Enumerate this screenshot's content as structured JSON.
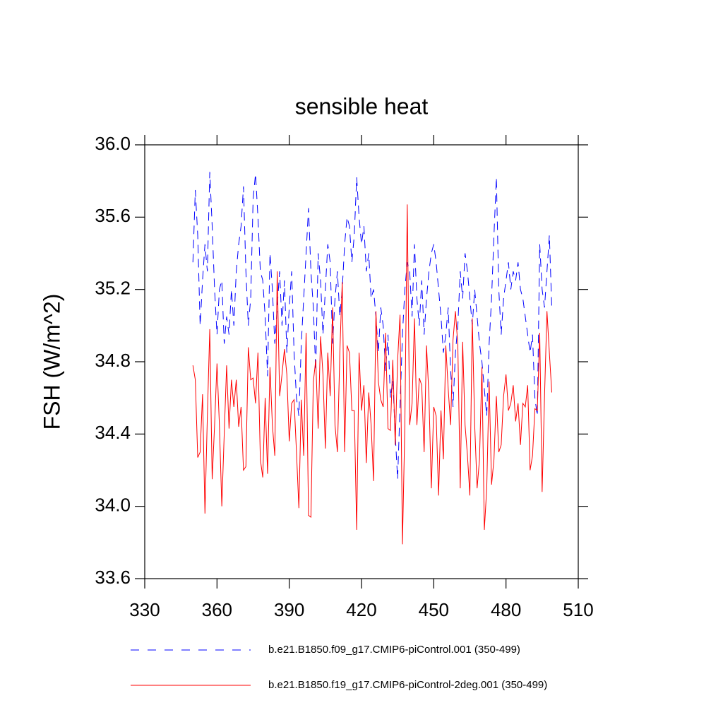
{
  "chart_data": {
    "type": "line",
    "title": "sensible heat",
    "y_label": "FSH  (W/m^2)",
    "x": [
      350,
      351,
      352,
      353,
      354,
      355,
      356,
      357,
      358,
      359,
      360,
      361,
      362,
      363,
      364,
      365,
      366,
      367,
      368,
      369,
      370,
      371,
      372,
      373,
      374,
      375,
      376,
      377,
      378,
      379,
      380,
      381,
      382,
      383,
      384,
      385,
      386,
      387,
      388,
      389,
      390,
      391,
      392,
      393,
      394,
      395,
      396,
      397,
      398,
      399,
      400,
      401,
      402,
      403,
      404,
      405,
      406,
      407,
      408,
      409,
      410,
      411,
      412,
      413,
      414,
      415,
      416,
      417,
      418,
      419,
      420,
      421,
      422,
      423,
      424,
      425,
      426,
      427,
      428,
      429,
      430,
      431,
      432,
      433,
      434,
      435,
      436,
      437,
      438,
      439,
      440,
      441,
      442,
      443,
      444,
      445,
      446,
      447,
      448,
      449,
      450,
      451,
      452,
      453,
      454,
      455,
      456,
      457,
      458,
      459,
      460,
      461,
      462,
      463,
      464,
      465,
      466,
      467,
      468,
      469,
      470,
      471,
      472,
      473,
      474,
      475,
      476,
      477,
      478,
      479,
      480,
      481,
      482,
      483,
      484,
      485,
      486,
      487,
      488,
      489,
      490,
      491,
      492,
      493,
      494,
      495,
      496,
      497,
      498,
      499
    ],
    "series": [
      {
        "name": "b.e21.B1850.f09_g17.CMIP6-piControl.001 (350-499)",
        "color": "#0000ff",
        "dashed": true,
        "values": [
          35.35,
          35.75,
          35.5,
          35.0,
          35.25,
          35.45,
          35.3,
          35.85,
          35.55,
          35.2,
          34.95,
          35.2,
          35.25,
          34.9,
          35.05,
          34.95,
          35.2,
          35.0,
          35.3,
          35.45,
          35.55,
          35.77,
          35.3,
          35.0,
          35.15,
          35.7,
          35.84,
          35.6,
          35.3,
          35.25,
          35.05,
          34.72,
          35.4,
          35.2,
          34.9,
          35.1,
          35.3,
          35.0,
          35.25,
          34.85,
          35.1,
          35.3,
          34.85,
          34.6,
          34.5,
          34.9,
          35.15,
          35.4,
          35.65,
          35.3,
          35.1,
          34.75,
          35.4,
          35.25,
          34.95,
          35.2,
          35.45,
          35.35,
          34.9,
          35.15,
          35.3,
          35.05,
          35.2,
          35.45,
          35.6,
          35.55,
          35.35,
          35.5,
          35.82,
          35.6,
          35.45,
          35.55,
          35.3,
          35.4,
          35.15,
          35.2,
          35.05,
          34.85,
          35.1,
          35.0,
          34.75,
          34.95,
          34.6,
          34.7,
          34.4,
          34.15,
          34.55,
          34.95,
          35.2,
          35.35,
          35.3,
          35.05,
          35.45,
          35.15,
          35.0,
          35.25,
          34.95,
          35.15,
          35.3,
          35.4,
          35.45,
          35.35,
          35.2,
          35.05,
          34.85,
          34.95,
          35.1,
          34.75,
          34.55,
          34.85,
          35.0,
          35.3,
          35.15,
          35.4,
          35.3,
          35.15,
          35.0,
          35.2,
          35.05,
          34.9,
          34.8,
          34.65,
          34.5,
          34.9,
          35.15,
          35.5,
          35.82,
          35.2,
          34.95,
          35.15,
          35.25,
          35.35,
          35.2,
          35.3,
          35.25,
          35.35,
          35.2,
          35.15,
          35.05,
          34.95,
          34.85,
          34.95,
          34.6,
          34.5,
          35.45,
          35.2,
          35.1,
          35.3,
          35.5,
          35.1
        ]
      },
      {
        "name": "b.e21.B1850.f19_g17.CMIP6-piControl-2deg.001 (350-499)",
        "color": "#ff0000",
        "dashed": false,
        "values": [
          34.78,
          34.7,
          34.27,
          34.3,
          34.62,
          33.96,
          34.5,
          34.98,
          34.15,
          34.45,
          34.79,
          34.45,
          34.0,
          34.4,
          34.78,
          34.43,
          34.7,
          34.55,
          34.7,
          34.44,
          34.55,
          34.2,
          34.22,
          34.88,
          34.7,
          34.71,
          34.57,
          34.85,
          34.26,
          34.16,
          34.6,
          34.18,
          34.77,
          34.45,
          34.28,
          35.3,
          34.61,
          34.73,
          34.87,
          34.73,
          34.36,
          34.57,
          34.59,
          34.3,
          33.99,
          34.59,
          34.28,
          34.96,
          33.95,
          33.94,
          34.69,
          34.81,
          34.43,
          34.94,
          34.73,
          34.32,
          34.85,
          34.61,
          35.1,
          34.45,
          34.3,
          34.85,
          35.24,
          34.3,
          34.89,
          34.85,
          34.53,
          34.53,
          33.87,
          34.85,
          34.53,
          34.67,
          34.24,
          34.63,
          34.45,
          34.14,
          35.08,
          34.69,
          34.59,
          34.55,
          34.96,
          34.43,
          34.42,
          34.81,
          34.34,
          34.81,
          35.06,
          33.79,
          34.45,
          35.67,
          34.45,
          34.57,
          35.04,
          34.45,
          34.71,
          34.67,
          34.3,
          34.89,
          34.61,
          34.1,
          34.55,
          34.5,
          34.06,
          34.53,
          34.26,
          34.89,
          34.65,
          34.45,
          34.92,
          35.08,
          34.89,
          34.1,
          34.91,
          34.45,
          34.28,
          34.06,
          35.04,
          34.45,
          34.1,
          34.26,
          34.77,
          33.87,
          34.1,
          34.69,
          34.12,
          34.26,
          34.61,
          34.3,
          34.34,
          34.61,
          34.73,
          34.53,
          34.57,
          34.67,
          34.47,
          34.57,
          34.34,
          34.57,
          34.55,
          34.67,
          34.2,
          34.28,
          34.54,
          34.53,
          34.96,
          34.08,
          34.61,
          35.08,
          34.85,
          34.63
        ]
      }
    ],
    "xlim": [
      330,
      510
    ],
    "xticks": [
      330,
      360,
      390,
      420,
      450,
      480,
      510
    ],
    "ylim": [
      33.6,
      36.0
    ],
    "yticks": [
      {
        "value": 33.6,
        "label": "33.6"
      },
      {
        "value": 34.0,
        "label": "34.0"
      },
      {
        "value": 34.4,
        "label": "34.4"
      },
      {
        "value": 34.8,
        "label": "34.8"
      },
      {
        "value": 35.2,
        "label": "35.2"
      },
      {
        "value": 35.6,
        "label": "35.6"
      },
      {
        "value": 36.0,
        "label": "36.0"
      }
    ]
  }
}
